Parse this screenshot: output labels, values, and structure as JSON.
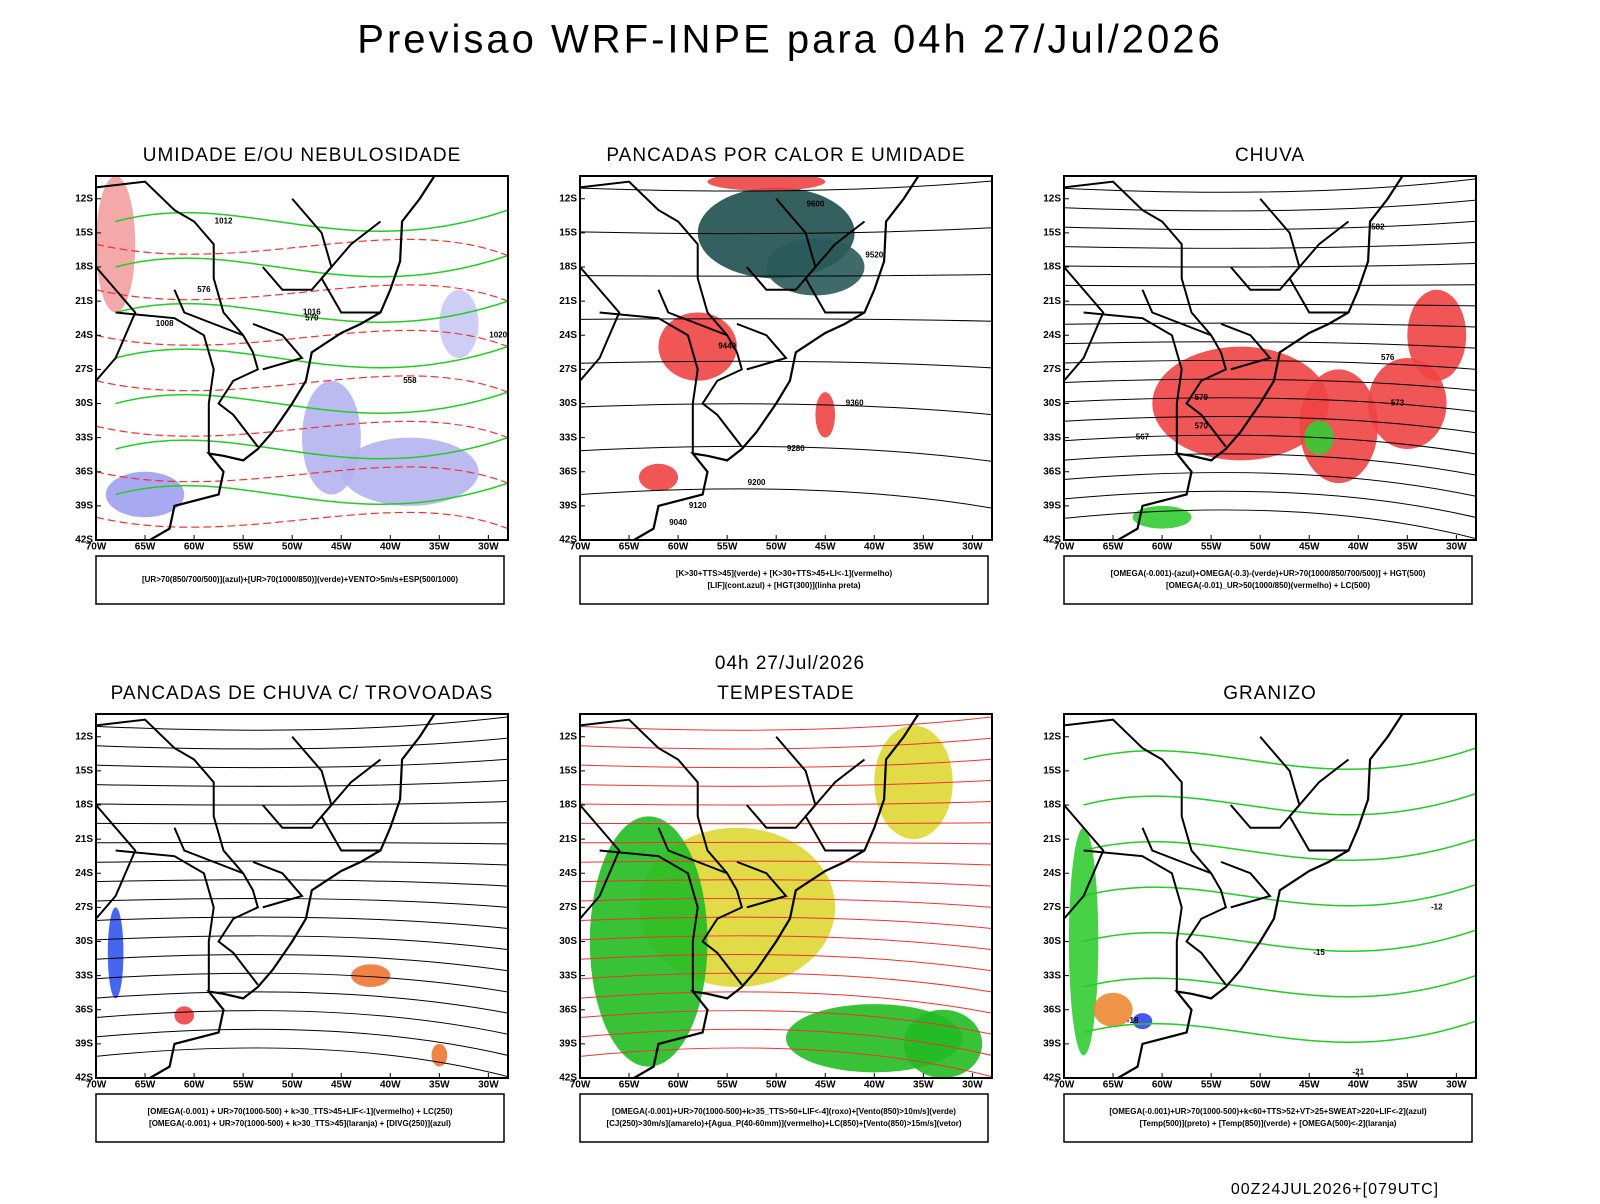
{
  "title": "Previsao WRF-INPE  para 04h 27/Jul/2026",
  "subtitle": "04h 27/Jul/2026",
  "footer": "00Z24JUL2026+[079UTC]",
  "lat_labels": [
    "12S",
    "15S",
    "18S",
    "21S",
    "24S",
    "27S",
    "30S",
    "33S",
    "36S",
    "39S",
    "42S"
  ],
  "lon_labels": [
    "70W",
    "65W",
    "60W",
    "55W",
    "50W",
    "45W",
    "40W",
    "35W",
    "30W"
  ],
  "panels": [
    {
      "title": "UMIDADE E/OU NEBULOSIDADE",
      "legend": [
        "[UR>70(850/700/500)](azul)+[UR>70(1000/850)](verde)+VENTO>5m/s+ESP(500/1000)"
      ],
      "labels": [
        "1012",
        "1016",
        "1020",
        "1008",
        "576",
        "570",
        "558"
      ]
    },
    {
      "title": "PANCADAS POR CALOR E UMIDADE",
      "legend": [
        "[K>30+TTS>45](verde) + [K>30+TTS>45+LI<-1](vermelho)",
        "[LIF](cont.azul) + [HGT(300)](linha preta)"
      ],
      "labels": [
        "9600",
        "9520",
        "9440",
        "9360",
        "9280",
        "9200",
        "9120",
        "9040"
      ]
    },
    {
      "title": "CHUVA",
      "legend": [
        "[OMEGA(-0.001)-(azul)+OMEGA(-0.3)-(verde)+UR>70(1000/850/700/500)] + HGT(500)",
        "[OMEGA(-0.01)_UR>50(1000/850)(vermelho) + LC(500)"
      ],
      "labels": [
        "582",
        "579",
        "576",
        "573",
        "570",
        "567"
      ]
    },
    {
      "title": "PANCADAS DE CHUVA C/ TROVOADAS",
      "legend": [
        "[OMEGA(-0.001) + UR>70(1000-500) + k>30_TTS>45+LIF<-1](vermelho) + LC(250)",
        "[OMEGA(-0.001) + UR>70(1000-500) + k>30_TTS>45](laranja) + [DIVG(250)](azul)"
      ],
      "labels": []
    },
    {
      "title": "TEMPESTADE",
      "legend": [
        "[OMEGA(-0.001)+UR>70(1000-500)+k>35_TTS>50+LIF<-4](roxo)+[Vento(850)>10m/s](verde)",
        "[CJ(250)>30m/s](amarelo)+[Agua_P(40-60mm)](vermelho)+LC(850)+[Vento(850)>15m/s](vetor)"
      ],
      "labels": []
    },
    {
      "title": "GRANIZO",
      "legend": [
        "[OMEGA(-0.001)+UR>70(1000-500)+k<60+TTS>52+VT>25+SWEAT>220+LIF<-2](azul)",
        "[Temp(500)](preto) + [Temp(850)](verde) + [OMEGA(500)<-2](laranja)"
      ],
      "labels": [
        "-12",
        "-15",
        "-18",
        "-21"
      ]
    }
  ]
}
